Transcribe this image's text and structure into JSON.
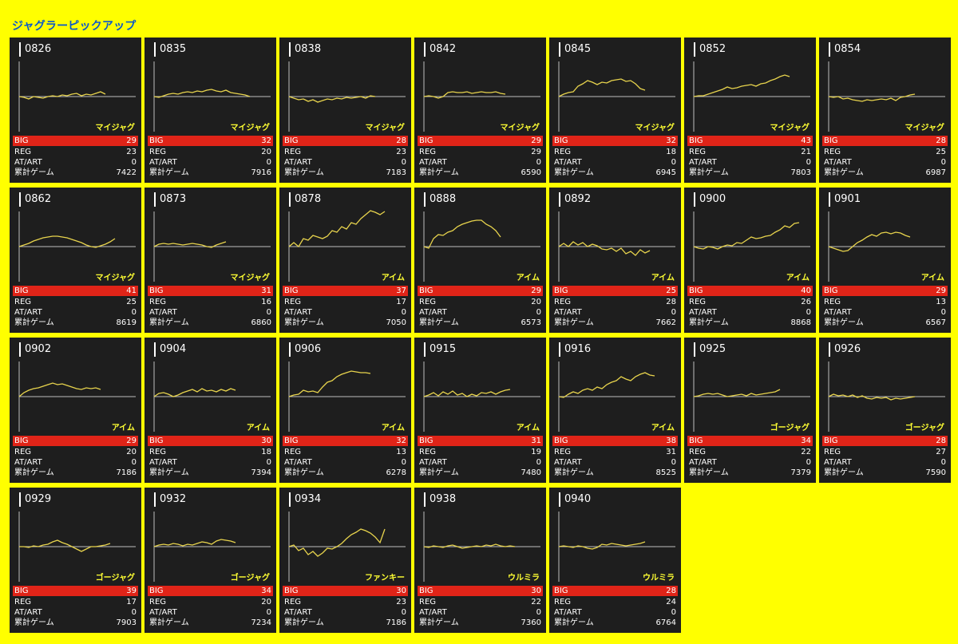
{
  "title": "ジャグラーピックアップ",
  "labels": {
    "big": "BIG",
    "reg": "REG",
    "art": "AT/ART",
    "total": "累計ゲーム"
  },
  "colors": {
    "background": "#ffff00",
    "card": "#1e1e1e",
    "line": "#e8d44d",
    "big_bar": "#e02418",
    "model_text": "#ffff33"
  },
  "machines": [
    {
      "id": "0826",
      "model": "マイジャグ",
      "big": "29",
      "reg": "23",
      "art": "0",
      "total": "7422",
      "trend": [
        0,
        -1,
        -3,
        0,
        -1,
        -2,
        0,
        1,
        0,
        2,
        1,
        3,
        4,
        1,
        3,
        2,
        4,
        6,
        3
      ]
    },
    {
      "id": "0835",
      "model": "マイジャグ",
      "big": "32",
      "reg": "20",
      "art": "0",
      "total": "7916",
      "trend": [
        0,
        -1,
        1,
        3,
        4,
        3,
        5,
        6,
        5,
        7,
        6,
        8,
        9,
        7,
        6,
        8,
        5,
        4,
        3,
        2,
        0
      ]
    },
    {
      "id": "0838",
      "model": "マイジャグ",
      "big": "28",
      "reg": "23",
      "art": "0",
      "total": "7183",
      "trend": [
        0,
        -2,
        -4,
        -3,
        -6,
        -4,
        -7,
        -5,
        -3,
        -4,
        -2,
        -3,
        -1,
        -2,
        -1,
        0,
        -2,
        1,
        0
      ]
    },
    {
      "id": "0842",
      "model": "マイジャグ",
      "big": "29",
      "reg": "29",
      "art": "0",
      "total": "6590",
      "trend": [
        0,
        1,
        0,
        -2,
        0,
        5,
        6,
        5,
        5,
        6,
        4,
        5,
        6,
        5,
        5,
        6,
        4,
        3
      ]
    },
    {
      "id": "0845",
      "model": "マイジャグ",
      "big": "32",
      "reg": "18",
      "art": "0",
      "total": "6945",
      "trend": [
        0,
        3,
        5,
        6,
        13,
        16,
        20,
        18,
        15,
        18,
        17,
        20,
        21,
        22,
        19,
        20,
        16,
        10,
        8
      ]
    },
    {
      "id": "0852",
      "model": "マイジャグ",
      "big": "43",
      "reg": "21",
      "art": "0",
      "total": "7803",
      "trend": [
        0,
        1,
        1,
        3,
        5,
        7,
        9,
        12,
        10,
        11,
        13,
        14,
        15,
        13,
        16,
        17,
        20,
        22,
        25,
        27,
        25
      ]
    },
    {
      "id": "0854",
      "model": "マイジャグ",
      "big": "28",
      "reg": "25",
      "art": "0",
      "total": "6987",
      "trend": [
        0,
        -1,
        0,
        -3,
        -2,
        -4,
        -5,
        -6,
        -4,
        -5,
        -4,
        -3,
        -4,
        -2,
        -5,
        -1,
        0,
        2,
        3
      ]
    },
    {
      "id": "0862",
      "model": "マイジャグ",
      "big": "41",
      "reg": "25",
      "art": "0",
      "total": "8619",
      "trend": [
        0,
        2,
        4,
        7,
        9,
        11,
        12,
        13,
        13,
        12,
        11,
        9,
        7,
        5,
        2,
        0,
        -1,
        1,
        3,
        6,
        10
      ]
    },
    {
      "id": "0873",
      "model": "マイジャグ",
      "big": "31",
      "reg": "16",
      "art": "0",
      "total": "6860",
      "trend": [
        0,
        3,
        4,
        3,
        4,
        3,
        2,
        3,
        4,
        3,
        2,
        0,
        -1,
        2,
        4,
        6
      ]
    },
    {
      "id": "0878",
      "model": "アイム",
      "big": "37",
      "reg": "17",
      "art": "0",
      "total": "7050",
      "trend": [
        0,
        5,
        0,
        10,
        8,
        14,
        12,
        10,
        13,
        20,
        18,
        25,
        22,
        30,
        28,
        35,
        40,
        45,
        43,
        40,
        44
      ]
    },
    {
      "id": "0888",
      "model": "アイム",
      "big": "29",
      "reg": "20",
      "art": "0",
      "total": "6573",
      "trend": [
        0,
        -2,
        10,
        15,
        14,
        18,
        20,
        25,
        28,
        30,
        32,
        33,
        33,
        28,
        25,
        20,
        12
      ]
    },
    {
      "id": "0892",
      "model": "アイム",
      "big": "25",
      "reg": "28",
      "art": "0",
      "total": "7662",
      "trend": [
        0,
        4,
        0,
        6,
        2,
        5,
        0,
        3,
        1,
        -3,
        -4,
        -2,
        -6,
        -2,
        -9,
        -6,
        -11,
        -4,
        -8,
        -5
      ]
    },
    {
      "id": "0900",
      "model": "アイム",
      "big": "40",
      "reg": "26",
      "art": "0",
      "total": "8868",
      "trend": [
        0,
        -2,
        -3,
        0,
        -1,
        -3,
        0,
        2,
        1,
        5,
        4,
        8,
        12,
        10,
        11,
        13,
        14,
        18,
        21,
        26,
        24,
        29,
        30
      ]
    },
    {
      "id": "0901",
      "model": "アイム",
      "big": "29",
      "reg": "13",
      "art": "0",
      "total": "6567",
      "trend": [
        0,
        -2,
        -4,
        -6,
        -5,
        0,
        5,
        8,
        12,
        15,
        13,
        17,
        18,
        16,
        18,
        17,
        14,
        12
      ]
    },
    {
      "id": "0902",
      "model": "アイム",
      "big": "29",
      "reg": "20",
      "art": "0",
      "total": "7186",
      "trend": [
        0,
        5,
        8,
        10,
        11,
        13,
        15,
        17,
        15,
        16,
        14,
        12,
        10,
        9,
        11,
        10,
        11,
        9
      ]
    },
    {
      "id": "0904",
      "model": "アイム",
      "big": "30",
      "reg": "18",
      "art": "0",
      "total": "7394",
      "trend": [
        0,
        4,
        5,
        3,
        0,
        2,
        5,
        7,
        9,
        6,
        10,
        7,
        8,
        6,
        9,
        7,
        10,
        8
      ]
    },
    {
      "id": "0906",
      "model": "アイム",
      "big": "32",
      "reg": "13",
      "art": "0",
      "total": "6278",
      "trend": [
        0,
        2,
        3,
        8,
        6,
        7,
        5,
        12,
        18,
        20,
        25,
        28,
        30,
        32,
        31,
        30,
        30,
        29
      ]
    },
    {
      "id": "0915",
      "model": "アイム",
      "big": "31",
      "reg": "19",
      "art": "0",
      "total": "7480",
      "trend": [
        0,
        2,
        5,
        1,
        6,
        3,
        7,
        2,
        4,
        0,
        3,
        1,
        5,
        4,
        6,
        3,
        6,
        8,
        9
      ]
    },
    {
      "id": "0916",
      "model": "アイム",
      "big": "38",
      "reg": "31",
      "art": "0",
      "total": "8525",
      "trend": [
        0,
        -1,
        3,
        6,
        4,
        8,
        10,
        8,
        12,
        10,
        15,
        18,
        20,
        25,
        22,
        20,
        25,
        28,
        30,
        27,
        26
      ]
    },
    {
      "id": "0925",
      "model": "ゴージャグ",
      "big": "34",
      "reg": "22",
      "art": "0",
      "total": "7379",
      "trend": [
        0,
        1,
        3,
        4,
        3,
        4,
        2,
        0,
        1,
        2,
        3,
        1,
        4,
        2,
        3,
        4,
        5,
        6,
        9
      ]
    },
    {
      "id": "0926",
      "model": "ゴージャグ",
      "big": "28",
      "reg": "27",
      "art": "0",
      "total": "7590",
      "trend": [
        0,
        3,
        1,
        2,
        0,
        2,
        -1,
        1,
        -2,
        -3,
        -1,
        -2,
        -1,
        -4,
        -2,
        -3,
        -2,
        -1,
        0
      ]
    },
    {
      "id": "0929",
      "model": "ゴージャグ",
      "big": "39",
      "reg": "17",
      "art": "0",
      "total": "7903",
      "trend": [
        0,
        0,
        -1,
        1,
        0,
        2,
        3,
        6,
        8,
        5,
        3,
        0,
        -3,
        -6,
        -3,
        0,
        0,
        1,
        2,
        4
      ]
    },
    {
      "id": "0932",
      "model": "ゴージャグ",
      "big": "34",
      "reg": "20",
      "art": "0",
      "total": "7234",
      "trend": [
        0,
        2,
        3,
        2,
        4,
        3,
        1,
        3,
        2,
        4,
        6,
        5,
        3,
        7,
        9,
        8,
        7,
        5
      ]
    },
    {
      "id": "0934",
      "model": "ファンキー",
      "big": "30",
      "reg": "23",
      "art": "0",
      "total": "7186",
      "trend": [
        0,
        2,
        -5,
        -2,
        -10,
        -6,
        -12,
        -8,
        -2,
        -3,
        0,
        4,
        10,
        15,
        18,
        22,
        20,
        17,
        12,
        5,
        22
      ]
    },
    {
      "id": "0938",
      "model": "ウルミラ",
      "big": "30",
      "reg": "22",
      "art": "0",
      "total": "7360",
      "trend": [
        0,
        -1,
        1,
        0,
        -1,
        1,
        2,
        0,
        -2,
        -1,
        0,
        1,
        0,
        2,
        1,
        3,
        1,
        0,
        1,
        0
      ]
    },
    {
      "id": "0940",
      "model": "ウルミラ",
      "big": "28",
      "reg": "24",
      "art": "0",
      "total": "6764",
      "trend": [
        0,
        1,
        0,
        -1,
        1,
        0,
        -2,
        -3,
        -1,
        3,
        2,
        4,
        3,
        2,
        1,
        2,
        3,
        4,
        6
      ]
    }
  ]
}
